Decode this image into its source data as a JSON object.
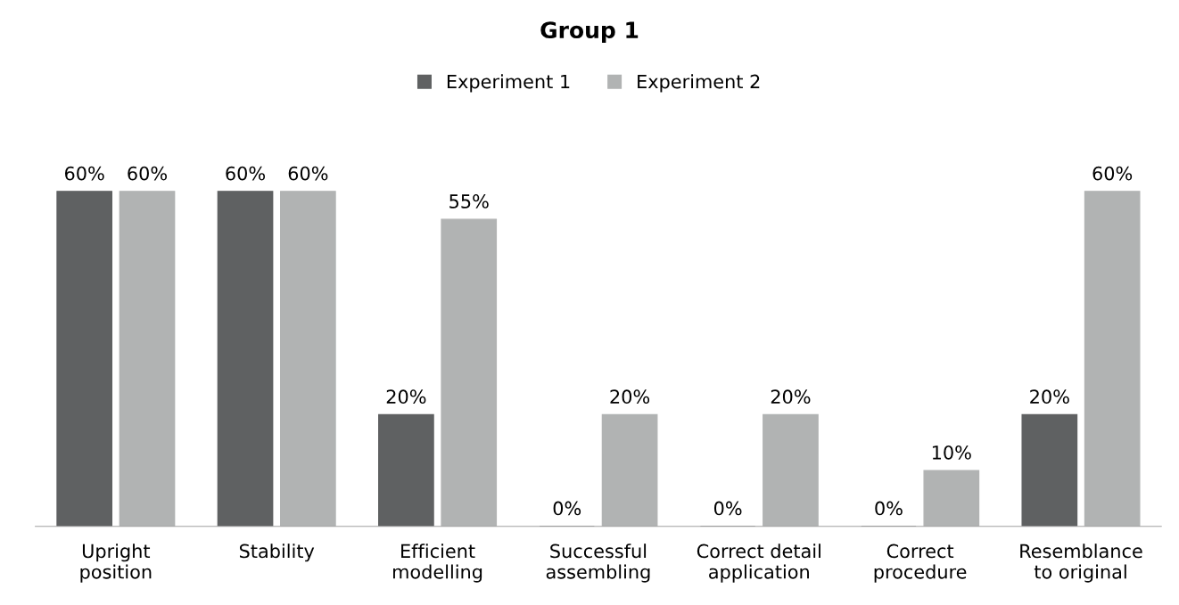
{
  "chart_data": {
    "type": "bar",
    "title": "Group 1",
    "categories": [
      "Upright\nposition",
      "Stability",
      "Efficient\nmodelling",
      "Successful\nassembling",
      "Correct detail\napplication",
      "Correct\nprocedure",
      "Resemblance\nto original"
    ],
    "series": [
      {
        "name": "Experiment 1",
        "color": "#5f6162",
        "values": [
          60,
          60,
          20,
          0,
          0,
          0,
          20
        ],
        "value_labels": [
          "60%",
          "60%",
          "20%",
          "0%",
          "0%",
          "0%",
          "20%"
        ]
      },
      {
        "name": "Experiment 2",
        "color": "#b1b3b3",
        "values": [
          60,
          60,
          55,
          20,
          20,
          10,
          60
        ],
        "value_labels": [
          "60%",
          "60%",
          "55%",
          "20%",
          "20%",
          "10%",
          "60%"
        ]
      }
    ],
    "legend": "top",
    "grid": false
  }
}
